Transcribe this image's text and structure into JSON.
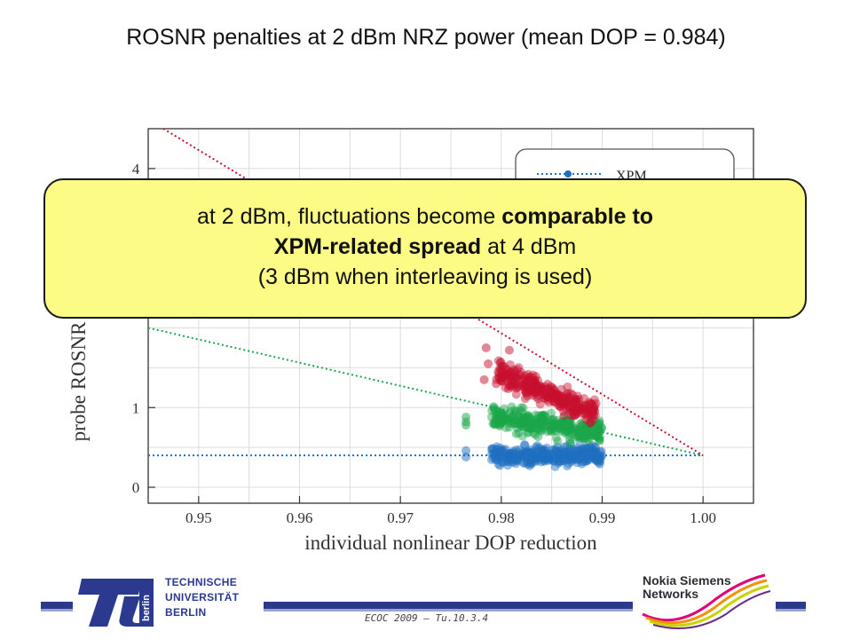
{
  "title": "ROSNR penalties at 2 dBm NRZ power (mean DOP = 0.984)",
  "callout": {
    "line1_pre": "at 2 dBm, fluctuations become ",
    "line1_bold": "comparable to",
    "line2_bold": "XPM-related spread",
    "line2_post": " at 4 dBm",
    "line3": "(3 dBm when interleaving is used)"
  },
  "footer": {
    "university": [
      "TECHNISCHE",
      "UNIVERSITÄT",
      "BERLIN"
    ],
    "logo_text": "berlin",
    "conference": "ECOC 2009 – Tu.10.3.4",
    "company": [
      "Nokia Siemens",
      "Networks"
    ]
  },
  "colors": {
    "xpm": "#1f6fc0",
    "green": "#1aa64a",
    "red": "#c8102e",
    "callout_bg": "#fbfb86",
    "tu_blue": "#2b3a8f"
  },
  "chart_data": {
    "type": "scatter",
    "xlabel": "individual nonlinear DOP reduction",
    "ylabel": "probe ROSNR",
    "xlim": [
      0.945,
      1.005
    ],
    "ylim": [
      -0.2,
      4.5
    ],
    "xticks": [
      "0.95",
      "0.96",
      "0.97",
      "0.98",
      "0.99",
      "1.00"
    ],
    "xtick_values": [
      0.95,
      0.96,
      0.97,
      0.98,
      0.99,
      1.0
    ],
    "yticks": [
      "0",
      "1",
      "4"
    ],
    "ytick_values": [
      0,
      1,
      4
    ],
    "grid": true,
    "legend": {
      "placement": "top-right",
      "visible_entries": [
        "XPM"
      ]
    },
    "series": [
      {
        "name": "XPM",
        "color": "blue",
        "line": {
          "x": [
            0.945,
            1.0
          ],
          "y": [
            0.4,
            0.4
          ]
        },
        "cluster": {
          "x_range": [
            0.979,
            0.99
          ],
          "y_center": 0.4,
          "y_spread": 0.12,
          "slope": 0
        },
        "outliers": [
          [
            0.9765,
            0.46
          ],
          [
            0.9765,
            0.38
          ],
          [
            0.9795,
            0.48
          ]
        ]
      },
      {
        "color": "green",
        "line": {
          "x": [
            0.945,
            1.0
          ],
          "y": [
            2.0,
            0.4
          ]
        },
        "cluster": {
          "x_range": [
            0.979,
            0.99
          ],
          "y_center": 0.78,
          "y_spread": 0.14,
          "slope": -18
        },
        "outliers": [
          [
            0.9765,
            0.82
          ],
          [
            0.9765,
            0.78
          ],
          [
            0.9765,
            0.88
          ],
          [
            0.9797,
            0.96
          ]
        ]
      },
      {
        "color": "red",
        "line": {
          "x": [
            0.9465,
            1.0
          ],
          "y": [
            4.5,
            0.4
          ]
        },
        "cluster": {
          "x_range": [
            0.9795,
            0.9895
          ],
          "y_center": 1.18,
          "y_spread": 0.14,
          "slope": -52
        },
        "outliers": [
          [
            0.9785,
            1.75
          ],
          [
            0.9787,
            1.55
          ],
          [
            0.9808,
            1.72
          ],
          [
            0.9797,
            1.45
          ],
          [
            0.9795,
            1.3
          ],
          [
            0.9783,
            1.35
          ]
        ]
      }
    ]
  }
}
